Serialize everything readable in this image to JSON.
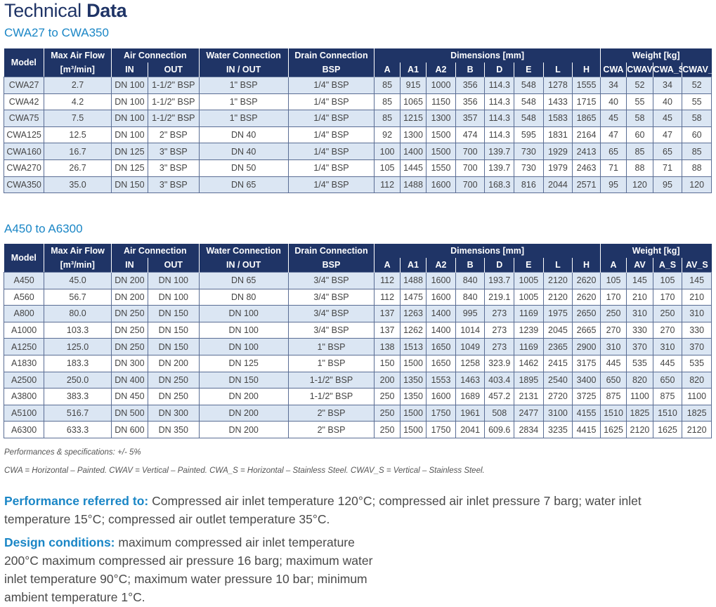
{
  "title": {
    "light": "Technical ",
    "bold": "Data"
  },
  "sections": [
    {
      "subtitle": "CWA27 to CWA350",
      "header_row1": [
        "Model",
        "Max Air Flow",
        "Air Connection",
        "Water Connection",
        "Drain Connection",
        "Dimensions [mm]",
        "Weight [kg]"
      ],
      "header_row2": [
        "[m³/min]",
        "IN",
        "OUT",
        "IN / OUT",
        "BSP",
        "A",
        "A1",
        "A2",
        "B",
        "D",
        "E",
        "L",
        "H",
        "CWA",
        "CWAV",
        "CWA_S",
        "CWAV_S"
      ],
      "rows": [
        [
          "CWA27",
          "2.7",
          "DN 100",
          "1-1/2\" BSP",
          "1\" BSP",
          "1/4\" BSP",
          "85",
          "915",
          "1000",
          "356",
          "114.3",
          "548",
          "1278",
          "1555",
          "34",
          "52",
          "34",
          "52"
        ],
        [
          "CWA42",
          "4.2",
          "DN 100",
          "1-1/2\" BSP",
          "1\" BSP",
          "1/4\" BSP",
          "85",
          "1065",
          "1150",
          "356",
          "114.3",
          "548",
          "1433",
          "1715",
          "40",
          "55",
          "40",
          "55"
        ],
        [
          "CWA75",
          "7.5",
          "DN 100",
          "1-1/2\" BSP",
          "1\" BSP",
          "1/4\" BSP",
          "85",
          "1215",
          "1300",
          "357",
          "114.3",
          "548",
          "1583",
          "1865",
          "45",
          "58",
          "45",
          "58"
        ],
        [
          "CWA125",
          "12.5",
          "DN 100",
          "2\" BSP",
          "DN 40",
          "1/4\" BSP",
          "92",
          "1300",
          "1500",
          "474",
          "114.3",
          "595",
          "1831",
          "2164",
          "47",
          "60",
          "47",
          "60"
        ],
        [
          "CWA160",
          "16.7",
          "DN 125",
          "3\" BSP",
          "DN 40",
          "1/4\" BSP",
          "100",
          "1400",
          "1500",
          "700",
          "139.7",
          "730",
          "1929",
          "2413",
          "65",
          "85",
          "65",
          "85"
        ],
        [
          "CWA270",
          "26.7",
          "DN 125",
          "3\" BSP",
          "DN 50",
          "1/4\" BSP",
          "105",
          "1445",
          "1550",
          "700",
          "139.7",
          "730",
          "1979",
          "2463",
          "71",
          "88",
          "71",
          "88"
        ],
        [
          "CWA350",
          "35.0",
          "DN 150",
          "3\" BSP",
          "DN 65",
          "1/4\" BSP",
          "112",
          "1488",
          "1600",
          "700",
          "168.3",
          "816",
          "2044",
          "2571",
          "95",
          "120",
          "95",
          "120"
        ]
      ]
    },
    {
      "subtitle": "A450 to A6300",
      "header_row1": [
        "Model",
        "Max Air Flow",
        "Air Connection",
        "Water Connection",
        "Drain Connection",
        "Dimensions [mm]",
        "Weight [kg]"
      ],
      "header_row2": [
        "[m³/min]",
        "IN",
        "OUT",
        "IN / OUT",
        "BSP",
        "A",
        "A1",
        "A2",
        "B",
        "D",
        "E",
        "L",
        "H",
        "A",
        "AV",
        "A_S",
        "AV_S"
      ],
      "rows": [
        [
          "A450",
          "45.0",
          "DN 200",
          "DN 100",
          "DN 65",
          "3/4\" BSP",
          "112",
          "1488",
          "1600",
          "840",
          "193.7",
          "1005",
          "2120",
          "2620",
          "105",
          "145",
          "105",
          "145"
        ],
        [
          "A560",
          "56.7",
          "DN 200",
          "DN 100",
          "DN 80",
          "3/4\" BSP",
          "112",
          "1475",
          "1600",
          "840",
          "219.1",
          "1005",
          "2120",
          "2620",
          "170",
          "210",
          "170",
          "210"
        ],
        [
          "A800",
          "80.0",
          "DN 250",
          "DN 150",
          "DN 100",
          "3/4\" BSP",
          "137",
          "1263",
          "1400",
          "995",
          "273",
          "1169",
          "1975",
          "2650",
          "250",
          "310",
          "250",
          "310"
        ],
        [
          "A1000",
          "103.3",
          "DN 250",
          "DN 150",
          "DN 100",
          "3/4\" BSP",
          "137",
          "1262",
          "1400",
          "1014",
          "273",
          "1239",
          "2045",
          "2665",
          "270",
          "330",
          "270",
          "330"
        ],
        [
          "A1250",
          "125.0",
          "DN 250",
          "DN 150",
          "DN 100",
          "1\" BSP",
          "138",
          "1513",
          "1650",
          "1049",
          "273",
          "1169",
          "2365",
          "2900",
          "310",
          "370",
          "310",
          "370"
        ],
        [
          "A1830",
          "183.3",
          "DN 300",
          "DN 200",
          "DN 125",
          "1\" BSP",
          "150",
          "1500",
          "1650",
          "1258",
          "323.9",
          "1462",
          "2415",
          "3175",
          "445",
          "535",
          "445",
          "535"
        ],
        [
          "A2500",
          "250.0",
          "DN 400",
          "DN 250",
          "DN 150",
          "1-1/2\" BSP",
          "200",
          "1350",
          "1553",
          "1463",
          "403.4",
          "1895",
          "2540",
          "3400",
          "650",
          "820",
          "650",
          "820"
        ],
        [
          "A3800",
          "383.3",
          "DN 450",
          "DN 250",
          "DN 200",
          "1-1/2\" BSP",
          "250",
          "1350",
          "1600",
          "1689",
          "457.2",
          "2131",
          "2720",
          "3725",
          "875",
          "1100",
          "875",
          "1100"
        ],
        [
          "A5100",
          "516.7",
          "DN 500",
          "DN 300",
          "DN 200",
          "2\" BSP",
          "250",
          "1500",
          "1750",
          "1961",
          "508",
          "2477",
          "3100",
          "4155",
          "1510",
          "1825",
          "1510",
          "1825"
        ],
        [
          "A6300",
          "633.3",
          "DN 600",
          "DN 350",
          "DN 200",
          "2\" BSP",
          "250",
          "1500",
          "1750",
          "2041",
          "609.6",
          "2834",
          "3235",
          "4415",
          "1625",
          "2120",
          "1625",
          "2120"
        ]
      ]
    }
  ],
  "notes": [
    "Performances & specifications: +/- 5%",
    "CWA = Horizontal – Painted. CWAV = Vertical – Painted. CWA_S = Horizontal – Stainless Steel. CWAV_S = Vertical – Stainless Steel."
  ],
  "performance": {
    "label": "Performance referred to:",
    "text": " Compressed air inlet temperature 120°C; compressed air inlet pressure 7 barg; water inlet temperature 15°C; compressed air outlet temperature 35°C."
  },
  "design": {
    "label": "Design conditions:",
    "text": " maximum compressed air inlet temperature 200°C maximum compressed air pressure 16 barg; maximum water inlet temperature 90°C; maximum water pressure 10 bar; minimum ambient temperature 1°C."
  },
  "colors": {
    "header_bg": "#1f3466",
    "row_alt": "#dbe6f3",
    "accent": "#1a86c6"
  }
}
